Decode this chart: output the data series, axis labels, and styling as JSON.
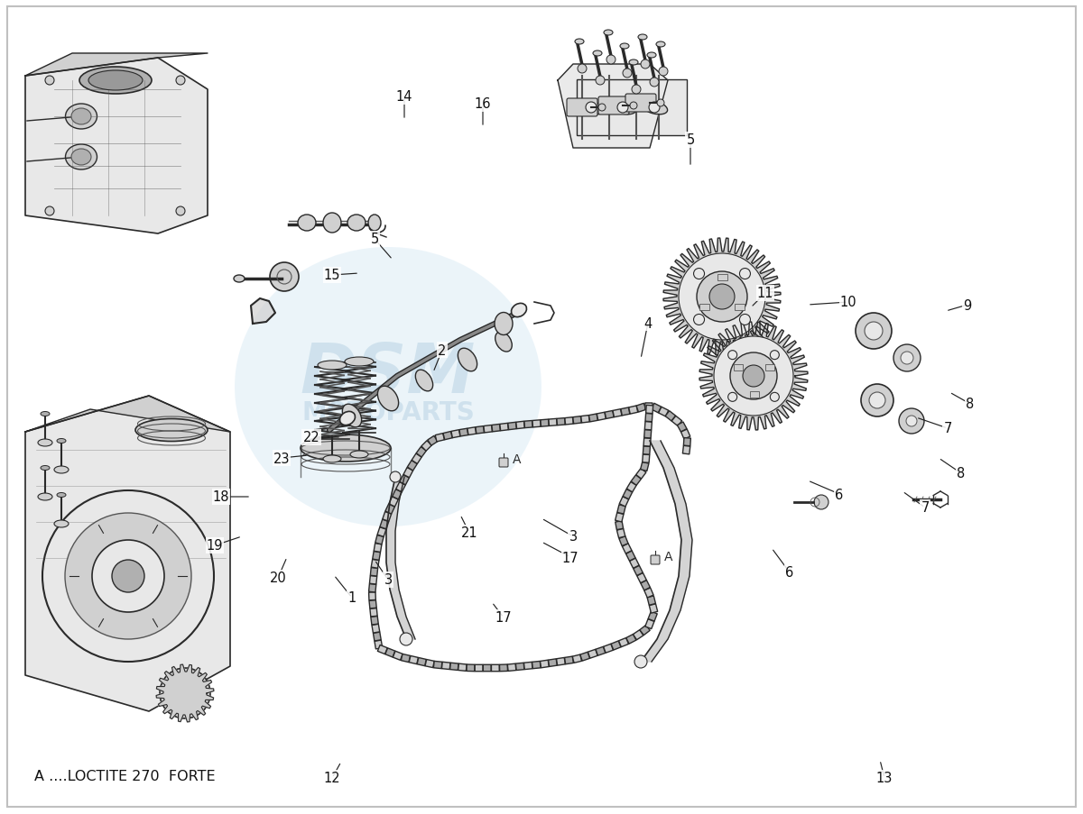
{
  "background_color": "#ffffff",
  "border_color": "#c0c0c0",
  "footnote": "A ....LOCTITE 270  FORTE",
  "line_dark": "#2a2a2a",
  "line_mid": "#555555",
  "line_light": "#888888",
  "fill_light": "#e8e8e8",
  "fill_mid": "#d0d0d0",
  "fill_dark": "#b0b0b0",
  "watermark_color": "#a8d0e8",
  "watermark_alpha": 0.22,
  "labels": [
    [
      "1",
      370,
      265,
      390,
      240
    ],
    [
      "2",
      480,
      490,
      490,
      515
    ],
    [
      "3",
      415,
      282,
      430,
      260
    ],
    [
      "3",
      600,
      328,
      635,
      308
    ],
    [
      "4",
      710,
      505,
      718,
      545
    ],
    [
      "5",
      435,
      615,
      415,
      638
    ],
    [
      "5",
      765,
      718,
      765,
      748
    ],
    [
      "6",
      855,
      295,
      875,
      268
    ],
    [
      "6",
      895,
      370,
      930,
      355
    ],
    [
      "7",
      1000,
      358,
      1025,
      340
    ],
    [
      "7",
      1015,
      440,
      1050,
      428
    ],
    [
      "8",
      1040,
      395,
      1065,
      378
    ],
    [
      "8",
      1052,
      468,
      1075,
      455
    ],
    [
      "9",
      1048,
      558,
      1072,
      565
    ],
    [
      "10",
      895,
      565,
      940,
      568
    ],
    [
      "11",
      832,
      562,
      848,
      578
    ],
    [
      "12",
      378,
      58,
      368,
      40
    ],
    [
      "13",
      975,
      60,
      980,
      40
    ],
    [
      "14",
      448,
      770,
      448,
      796
    ],
    [
      "15",
      398,
      600,
      368,
      598
    ],
    [
      "16",
      535,
      762,
      535,
      788
    ],
    [
      "17",
      600,
      302,
      632,
      285
    ],
    [
      "17",
      545,
      235,
      558,
      218
    ],
    [
      "18",
      278,
      352,
      245,
      352
    ],
    [
      "19",
      268,
      308,
      238,
      298
    ],
    [
      "20",
      318,
      285,
      308,
      262
    ],
    [
      "21",
      510,
      332,
      520,
      312
    ],
    [
      "22",
      378,
      418,
      345,
      418
    ],
    [
      "23",
      342,
      398,
      312,
      395
    ]
  ]
}
